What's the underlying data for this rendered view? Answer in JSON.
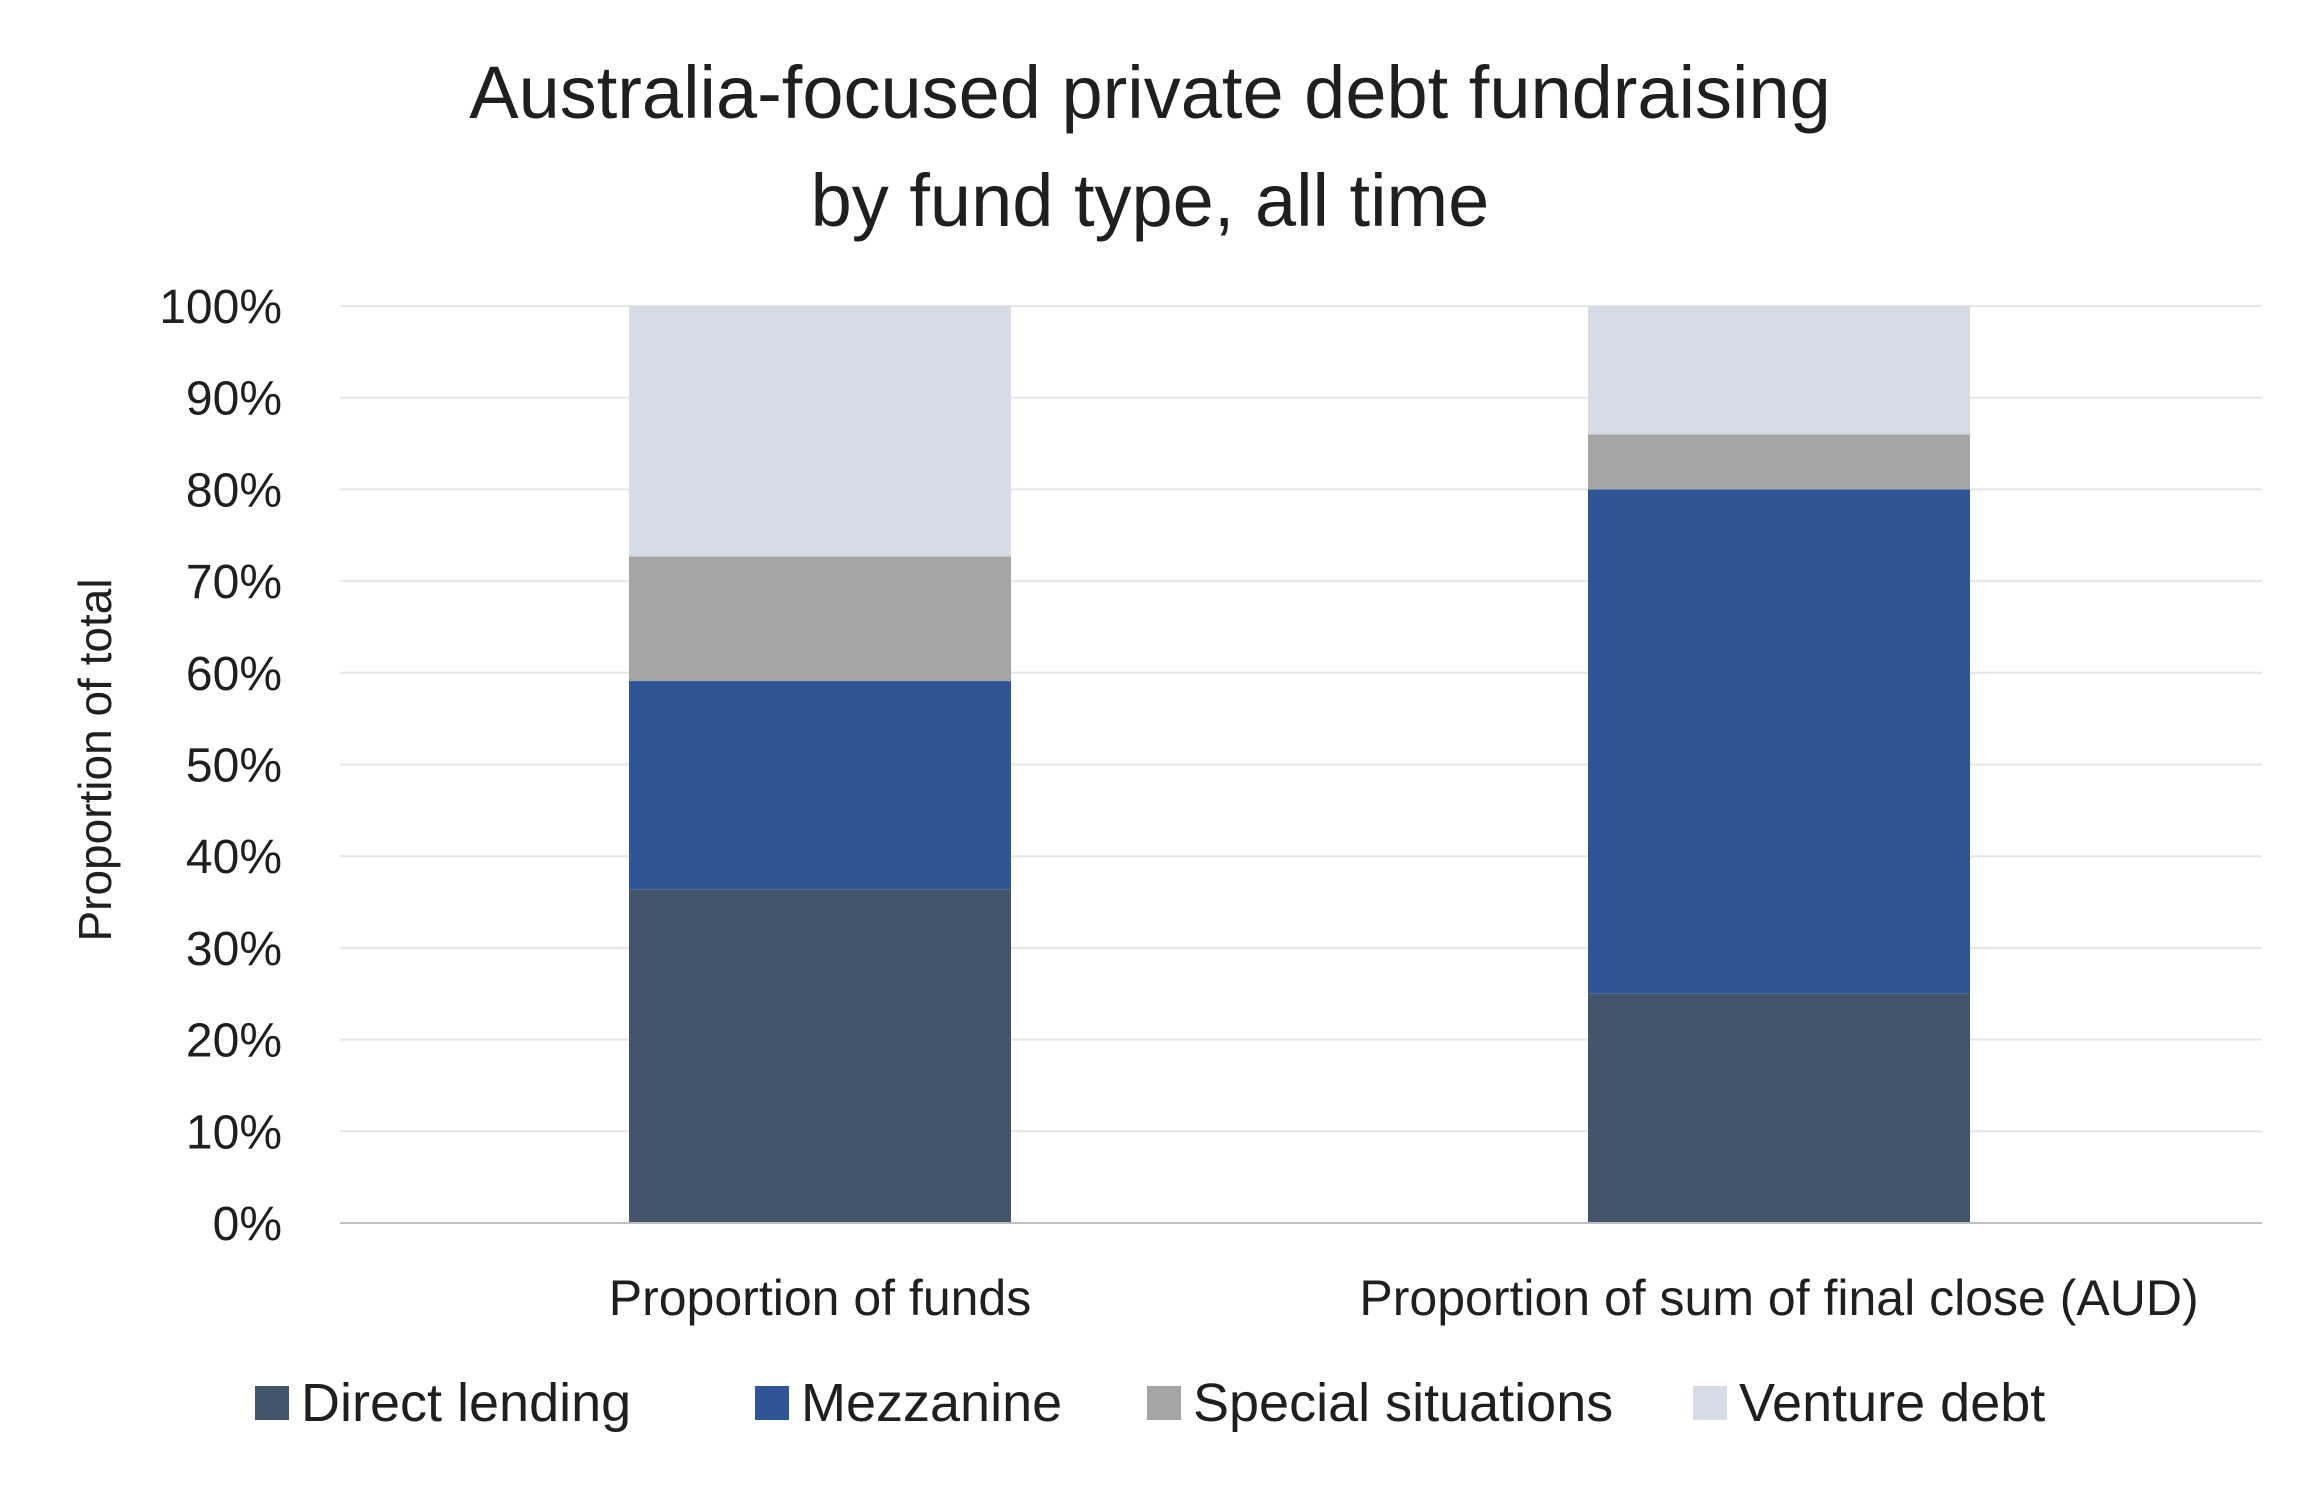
{
  "chart_data": {
    "type": "bar",
    "stacked": true,
    "title_lines": [
      "Australia-focused private debt fundraising",
      "by fund type, all time"
    ],
    "ylabel": "Proportion of total",
    "xlabel": "",
    "ylim": [
      0,
      100
    ],
    "y_ticks": [
      "0%",
      "10%",
      "20%",
      "30%",
      "40%",
      "50%",
      "60%",
      "70%",
      "80%",
      "90%",
      "100%"
    ],
    "grid": true,
    "legend_position": "bottom",
    "categories": [
      "Proportion of funds",
      "Proportion of sum of final close (AUD)"
    ],
    "series": [
      {
        "name": "Direct lending",
        "color": "#44546a",
        "values": [
          36.4,
          25.0
        ]
      },
      {
        "name": "Mezzanine",
        "color": "#2f5597",
        "values": [
          22.7,
          55.0
        ]
      },
      {
        "name": "Special situations",
        "color": "#a5a5a5",
        "values": [
          13.6,
          6.0
        ]
      },
      {
        "name": "Venture debt",
        "color": "#d6dce5",
        "values": [
          27.3,
          14.0
        ]
      }
    ]
  }
}
